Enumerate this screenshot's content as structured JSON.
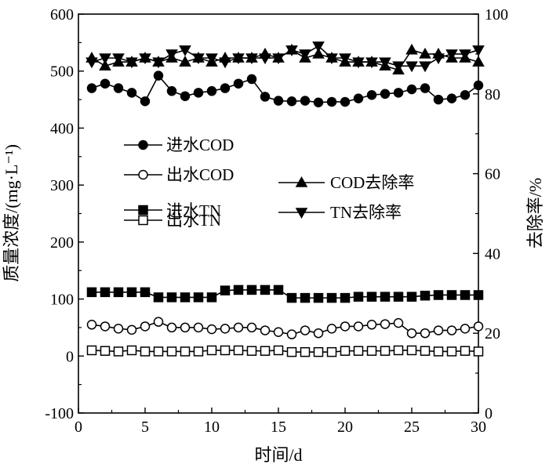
{
  "chart_data": {
    "type": "line",
    "title": "",
    "xlabel": "时间/d",
    "ylabel": "质量浓度/(mg·L⁻¹)",
    "y2label": "去除率/%",
    "xlim": [
      0,
      30
    ],
    "ylim": [
      -100,
      600
    ],
    "y2lim": [
      0,
      100
    ],
    "xticks": [
      "0",
      "5",
      "10",
      "15",
      "20",
      "25",
      "30"
    ],
    "yticks": [
      "-100",
      "0",
      "100",
      "200",
      "300",
      "400",
      "500",
      "600"
    ],
    "y2ticks": [
      "0",
      "20",
      "40",
      "60",
      "80",
      "100"
    ],
    "grid": false,
    "legend_placement": "center-left",
    "x": [
      1,
      2,
      3,
      4,
      5,
      6,
      7,
      8,
      9,
      10,
      11,
      12,
      13,
      14,
      15,
      16,
      17,
      18,
      19,
      20,
      21,
      22,
      23,
      24,
      25,
      26,
      27,
      28,
      29,
      30
    ],
    "series": [
      {
        "name": "进水COD",
        "axis": "left",
        "marker": "circle-filled",
        "values": [
          470,
          478,
          470,
          462,
          447,
          492,
          465,
          456,
          462,
          465,
          470,
          478,
          486,
          455,
          448,
          447,
          448,
          445,
          446,
          446,
          452,
          458,
          460,
          462,
          468,
          470,
          450,
          452,
          458,
          475
        ]
      },
      {
        "name": "出水COD",
        "axis": "left",
        "marker": "circle-open",
        "values": [
          55,
          52,
          48,
          46,
          52,
          60,
          50,
          50,
          50,
          47,
          48,
          50,
          50,
          45,
          42,
          38,
          45,
          40,
          48,
          52,
          52,
          55,
          56,
          58,
          40,
          40,
          45,
          45,
          48,
          52
        ]
      },
      {
        "name": "进水TN",
        "axis": "left",
        "marker": "square-filled",
        "values": [
          112,
          112,
          112,
          112,
          112,
          103,
          103,
          103,
          103,
          103,
          115,
          116,
          116,
          116,
          116,
          102,
          102,
          102,
          102,
          102,
          104,
          104,
          104,
          104,
          104,
          106,
          107,
          107,
          107,
          107
        ]
      },
      {
        "name": "出水TN",
        "axis": "left",
        "marker": "square-open",
        "values": [
          10,
          9,
          8,
          10,
          8,
          8,
          8,
          8,
          8,
          10,
          10,
          10,
          9,
          9,
          10,
          7,
          7,
          7,
          7,
          9,
          9,
          9,
          9,
          10,
          10,
          9,
          8,
          8,
          9,
          8
        ]
      },
      {
        "name": "COD去除率",
        "axis": "right",
        "marker": "triangle-up",
        "values": [
          89,
          87,
          88,
          88,
          89,
          88,
          89,
          88,
          89,
          88,
          89,
          89,
          89,
          90,
          89,
          91,
          89,
          90,
          89,
          88,
          88,
          88,
          87,
          86,
          91,
          90,
          90,
          89,
          89,
          88
        ]
      },
      {
        "name": "TN去除率",
        "axis": "right",
        "marker": "triangle-down",
        "values": [
          88,
          89,
          89,
          88,
          89,
          88,
          90,
          91,
          89,
          89,
          88,
          89,
          89,
          89,
          89,
          91,
          90,
          92,
          89,
          89,
          88,
          88,
          88,
          87,
          87,
          87,
          89,
          90,
          90,
          91
        ]
      }
    ]
  }
}
